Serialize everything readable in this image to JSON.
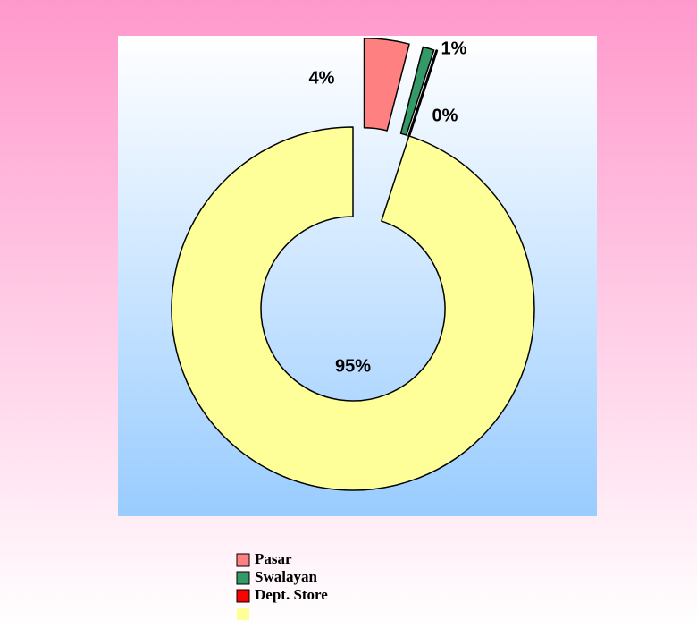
{
  "chart_data": {
    "type": "donut",
    "categories": [
      "Pasar",
      "Swalayan",
      "Dept. Store",
      null
    ],
    "values": [
      4,
      1,
      0,
      95
    ],
    "value_labels": [
      "4%",
      "1%",
      "0%",
      "95%"
    ],
    "colors": [
      "#ff8080",
      "#339966",
      "#ff0000",
      "#ffff99"
    ],
    "explode": [
      true,
      true,
      true,
      false
    ],
    "legend": "bottom"
  }
}
